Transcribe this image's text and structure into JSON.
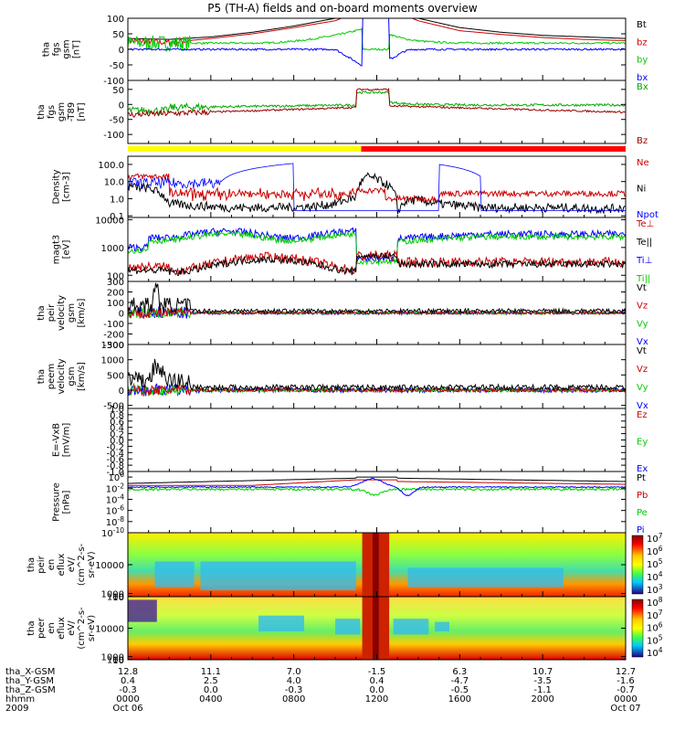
{
  "chart_data": {
    "type": "line",
    "title": "P5 (TH-A) fields and on-board moments overview",
    "panels": [
      {
        "id": "fgs",
        "ylabel": [
          "tha",
          "fgs",
          "gsm",
          "[nT]"
        ],
        "ylim": [
          -100,
          100
        ],
        "ticks": [
          "100",
          "50",
          "0",
          "-50",
          "-100"
        ],
        "tick_values": [
          100,
          50,
          0,
          -50,
          -100
        ],
        "legend": [
          {
            "label": "Bt",
            "color": "#000000"
          },
          {
            "label": "bz",
            "color": "#cc0000"
          },
          {
            "label": "by",
            "color": "#00cc00"
          },
          {
            "label": "bx",
            "color": "#0000ff"
          }
        ]
      },
      {
        "id": "fgs-t89",
        "ylabel": [
          "tha",
          "fgs",
          "gsm",
          "-T89",
          "[nT]"
        ],
        "ylim": [
          -130,
          80
        ],
        "ticks": [
          "50",
          "0",
          "-50",
          "-100"
        ],
        "tick_values": [
          50,
          0,
          -50,
          -100
        ],
        "legend": [
          {
            "label": "Bx",
            "color": "#00aa00"
          },
          {
            "label": "Bz",
            "color": "#990000"
          }
        ]
      },
      {
        "id": "density",
        "ylabel": [
          "Density",
          "[cm-3]"
        ],
        "scale": "log",
        "ylim": [
          0.08,
          300
        ],
        "ticks": [
          "100.0",
          "10.0",
          "1.0",
          "0.1"
        ],
        "tick_values": [
          100,
          10,
          1,
          0.1
        ],
        "legend": [
          {
            "label": "Ne",
            "color": "#cc0000"
          },
          {
            "label": "Ni",
            "color": "#000000"
          },
          {
            "label": "Npot",
            "color": "#0000ff"
          }
        ]
      },
      {
        "id": "temperature",
        "ylabel": [
          "magt3",
          "[eV]"
        ],
        "scale": "log",
        "ylim": [
          60,
          12000
        ],
        "ticks": [
          "10000",
          "1000",
          "100"
        ],
        "tick_values": [
          10000,
          1000,
          100
        ],
        "legend": [
          {
            "label": "Te⊥",
            "color": "#cc0000"
          },
          {
            "label": "Te||",
            "color": "#000000"
          },
          {
            "label": "Ti⊥",
            "color": "#0000ff"
          },
          {
            "label": "Ti||",
            "color": "#00cc00"
          }
        ]
      },
      {
        "id": "peir-velocity",
        "ylabel": [
          "tha",
          "peir",
          "velocity",
          "gsm",
          "[km/s]"
        ],
        "ylim": [
          -300,
          300
        ],
        "ticks": [
          "300",
          "200",
          "100",
          "0",
          "-100",
          "-200",
          "-300"
        ],
        "tick_values": [
          300,
          200,
          100,
          0,
          -100,
          -200,
          -300
        ],
        "legend": [
          {
            "label": "Vt",
            "color": "#000000"
          },
          {
            "label": "Vz",
            "color": "#cc0000"
          },
          {
            "label": "Vy",
            "color": "#00cc00"
          },
          {
            "label": "Vx",
            "color": "#0000ff"
          }
        ]
      },
      {
        "id": "peem-velocity",
        "ylabel": [
          "tha",
          "peem",
          "velocity",
          "gsm",
          "[km/s]"
        ],
        "ylim": [
          -600,
          1500
        ],
        "ticks": [
          "1500",
          "1000",
          "500",
          "0",
          "-500"
        ],
        "tick_values": [
          1500,
          1000,
          500,
          0,
          -500
        ],
        "legend": [
          {
            "label": "Vt",
            "color": "#000000"
          },
          {
            "label": "Vz",
            "color": "#cc0000"
          },
          {
            "label": "Vy",
            "color": "#00cc00"
          },
          {
            "label": "Vx",
            "color": "#0000ff"
          }
        ]
      },
      {
        "id": "efield",
        "ylabel": [
          "E=-VxB",
          "[mV/m]"
        ],
        "ylim": [
          -1,
          1
        ],
        "ticks": [
          "1.0",
          "0.8",
          "0.6",
          "0.4",
          "0.2",
          "0.0",
          "-0.2",
          "-0.4",
          "-0.6",
          "-0.8",
          "-1.0"
        ],
        "tick_values": [
          1,
          0.8,
          0.6,
          0.4,
          0.2,
          0,
          -0.2,
          -0.4,
          -0.6,
          -0.8,
          -1
        ],
        "legend": [
          {
            "label": "Ez",
            "color": "#cc0000"
          },
          {
            "label": "Ey",
            "color": "#00cc00"
          },
          {
            "label": "Ex",
            "color": "#0000ff"
          }
        ]
      },
      {
        "id": "pressure",
        "ylabel": [
          "Pressure",
          "[nPa]"
        ],
        "scale": "log",
        "ylim_exp": [
          -10,
          1
        ],
        "ticks": [
          "10^0",
          "10^-2",
          "10^-4",
          "10^-6",
          "10^-8",
          "10^-10"
        ],
        "tick_values": [
          0,
          -2,
          -4,
          -6,
          -8,
          -10
        ],
        "legend": [
          {
            "label": "Pt",
            "color": "#000000"
          },
          {
            "label": "Pb",
            "color": "#cc0000"
          },
          {
            "label": "Pe",
            "color": "#00cc00"
          },
          {
            "label": "Pi",
            "color": "#0000ff"
          }
        ]
      },
      {
        "id": "peir-eflux",
        "type": "spectrogram",
        "ylabel": [
          "tha",
          "peir",
          "en",
          "eflux",
          "eV/",
          "(cm^2-s-",
          "sr-eV)"
        ],
        "ylim": [
          10,
          20000
        ],
        "ticks": [
          "10000",
          "1000",
          "100",
          "10"
        ],
        "tick_values": [
          10000,
          1000,
          100,
          10
        ],
        "colorbar": [
          "10^7",
          "10^6",
          "10^5",
          "10^4",
          "10^3"
        ]
      },
      {
        "id": "peer-eflux",
        "type": "spectrogram",
        "ylabel": [
          "tha",
          "peer",
          "en",
          "eflux",
          "eV/",
          "(cm^2-s-",
          "sr-eV)"
        ],
        "ylim": [
          10,
          20000
        ],
        "ticks": [
          "10000",
          "1000",
          "100",
          "10"
        ],
        "tick_values": [
          10000,
          1000,
          100,
          10
        ],
        "colorbar": [
          "10^8",
          "10^7",
          "10^6",
          "10^5",
          "10^4"
        ]
      }
    ],
    "x_axis": {
      "xlim_hours": [
        0,
        24
      ],
      "tick_hours": [
        0,
        4,
        8,
        12,
        16,
        20,
        24
      ],
      "row_labels": [
        "tha_X-GSM",
        "tha_Y-GSM",
        "tha_Z-GSM",
        "hhmm",
        "2009"
      ],
      "columns": [
        [
          "12.8",
          "0.4",
          "-0.3",
          "0000",
          "Oct 06"
        ],
        [
          "11.1",
          "2.5",
          "0.0",
          "0400",
          ""
        ],
        [
          "7.0",
          "4.0",
          "-0.3",
          "0800",
          ""
        ],
        [
          "-1.5",
          "0.4",
          "0.0",
          "1200",
          ""
        ],
        [
          "6.3",
          "-4.7",
          "-0.5",
          "1600",
          ""
        ],
        [
          "10.7",
          "-3.5",
          "-1.1",
          "2000",
          ""
        ],
        [
          "12.7",
          "-1.6",
          "-0.7",
          "0000",
          "Oct 07"
        ]
      ]
    },
    "mode_bar": {
      "segments": [
        {
          "from_hour": 0,
          "to_hour": 11.25,
          "color": "#ffff00"
        },
        {
          "from_hour": 11.25,
          "to_hour": 24,
          "color": "#ff0000"
        }
      ]
    },
    "series_approx": {
      "fgs_Bt_hours": [
        0,
        2,
        4,
        6,
        8,
        10,
        11,
        11.7,
        12.5,
        13,
        14,
        16,
        18,
        20,
        22,
        24
      ],
      "fgs_Bt_values": [
        35,
        32,
        40,
        55,
        75,
        100,
        140,
        250,
        250,
        140,
        100,
        70,
        55,
        45,
        40,
        35
      ],
      "fgs_bz_values": [
        28,
        22,
        35,
        50,
        70,
        92,
        120,
        200,
        200,
        120,
        92,
        60,
        48,
        38,
        32,
        28
      ],
      "density_Ni_hours": [
        0,
        1,
        2,
        3,
        5,
        7,
        9,
        10,
        11,
        11.6,
        12.2,
        13,
        13.5,
        14,
        15,
        17,
        19,
        21,
        23,
        24
      ],
      "density_Ni_values": [
        5,
        4,
        0.5,
        0.4,
        0.3,
        0.3,
        0.35,
        0.5,
        1.2,
        20,
        10,
        0.15,
        0.8,
        0.8,
        0.5,
        0.3,
        0.3,
        0.3,
        0.25,
        0.3
      ]
    }
  }
}
